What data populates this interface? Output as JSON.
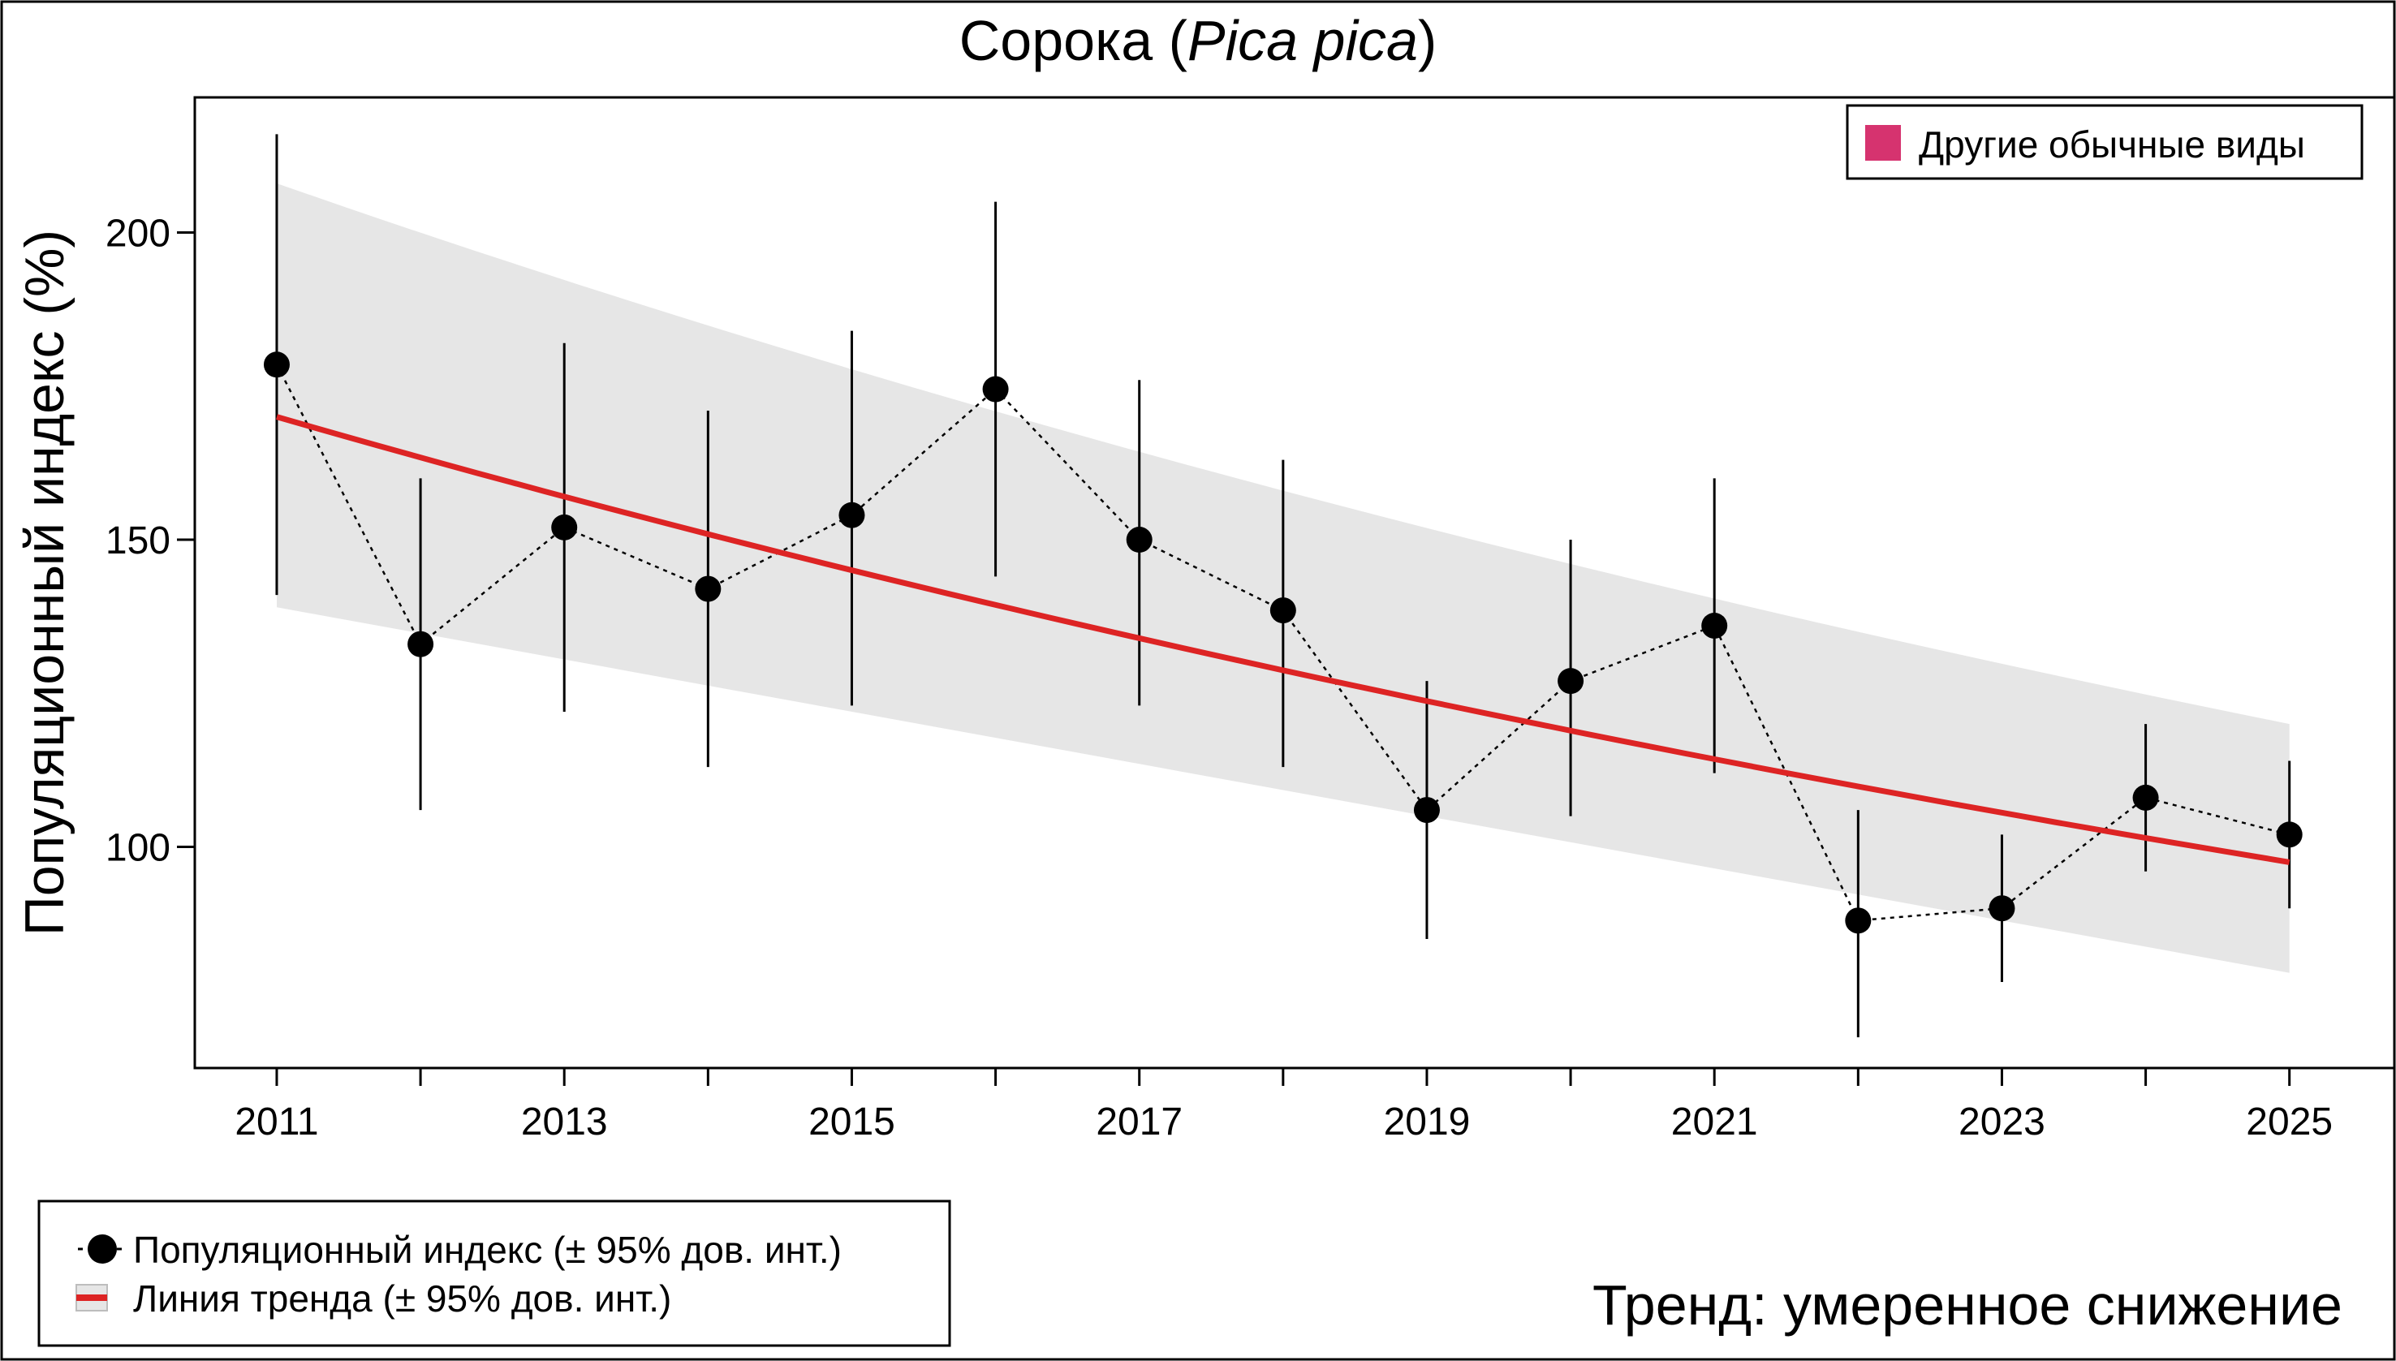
{
  "chart_data": {
    "type": "line",
    "title_common": "Сорока (",
    "title_latin": "Pica pica",
    "title_close": ")",
    "ylabel": "Популяционный индекс (%)",
    "xlabel": "",
    "x": [
      2011,
      2012,
      2013,
      2014,
      2015,
      2016,
      2017,
      2018,
      2019,
      2020,
      2021,
      2022,
      2023,
      2024,
      2025
    ],
    "x_tick_labels": [
      "2011",
      "2013",
      "2015",
      "2017",
      "2019",
      "2021",
      "2023",
      "2025"
    ],
    "x_tick_values": [
      2011,
      2013,
      2015,
      2017,
      2019,
      2021,
      2023,
      2025
    ],
    "y_tick_values": [
      100,
      150,
      200
    ],
    "y_tick_labels": [
      "100",
      "150",
      "200"
    ],
    "xlim": [
      2010.43,
      2025.73
    ],
    "ylim": [
      64,
      222
    ],
    "series": [
      {
        "name": "Популяционный индекс (± 95% дов. инт.)",
        "values": [
          178.5,
          133,
          152,
          142,
          154,
          174.5,
          150,
          138.5,
          106,
          127,
          136,
          88,
          90,
          108,
          102
        ],
        "lower": [
          141,
          106,
          122,
          113,
          123,
          144,
          123,
          113,
          85,
          105,
          112,
          69,
          78,
          96,
          90
        ],
        "upper": [
          216,
          160,
          182,
          171,
          184,
          205,
          176,
          163,
          127,
          150,
          160,
          106,
          102,
          120,
          114
        ]
      }
    ],
    "trend": {
      "name": "Линия тренда (± 95% дов. инт.)",
      "start_value": 170,
      "end_value": 97.5,
      "ci_upper_start": 208,
      "ci_upper_end": 120,
      "ci_lower_start": 139,
      "ci_lower_end": 79.5
    },
    "top_legend": "Другие обычные виды",
    "bottom_legend": [
      "Популяционный индекс (± 95% дов. инт.)",
      "Линия тренда (± 95% дов. инт.)"
    ],
    "trend_text": "Тренд: умеренное снижение",
    "colors": {
      "trend": "#dd2424",
      "ci_band": "#e6e6e6",
      "points": "#000000",
      "legend_swatch": "#d6336f",
      "trend_text": "#c00000"
    }
  }
}
